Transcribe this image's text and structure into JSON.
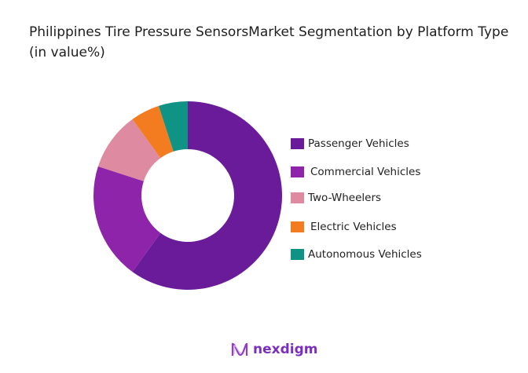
{
  "chart_data": {
    "type": "pie",
    "variant": "donut",
    "title": "Philippines Tire Pressure SensorsMarket Segmentation by Platform Type (in value%)",
    "categories": [
      "Passenger Vehicles",
      "Commercial Vehicles",
      "Two-Wheelers",
      "Electric Vehicles",
      "Autonomous Vehicles"
    ],
    "values": [
      60,
      20,
      10,
      5,
      5
    ],
    "colors": [
      "#6a1b9a",
      "#8e24aa",
      "#de8aa0",
      "#f47c20",
      "#0f9384"
    ],
    "legend_position": "right"
  },
  "brand": {
    "logo_text": "nexdigm",
    "color": "#7b2fbe"
  }
}
